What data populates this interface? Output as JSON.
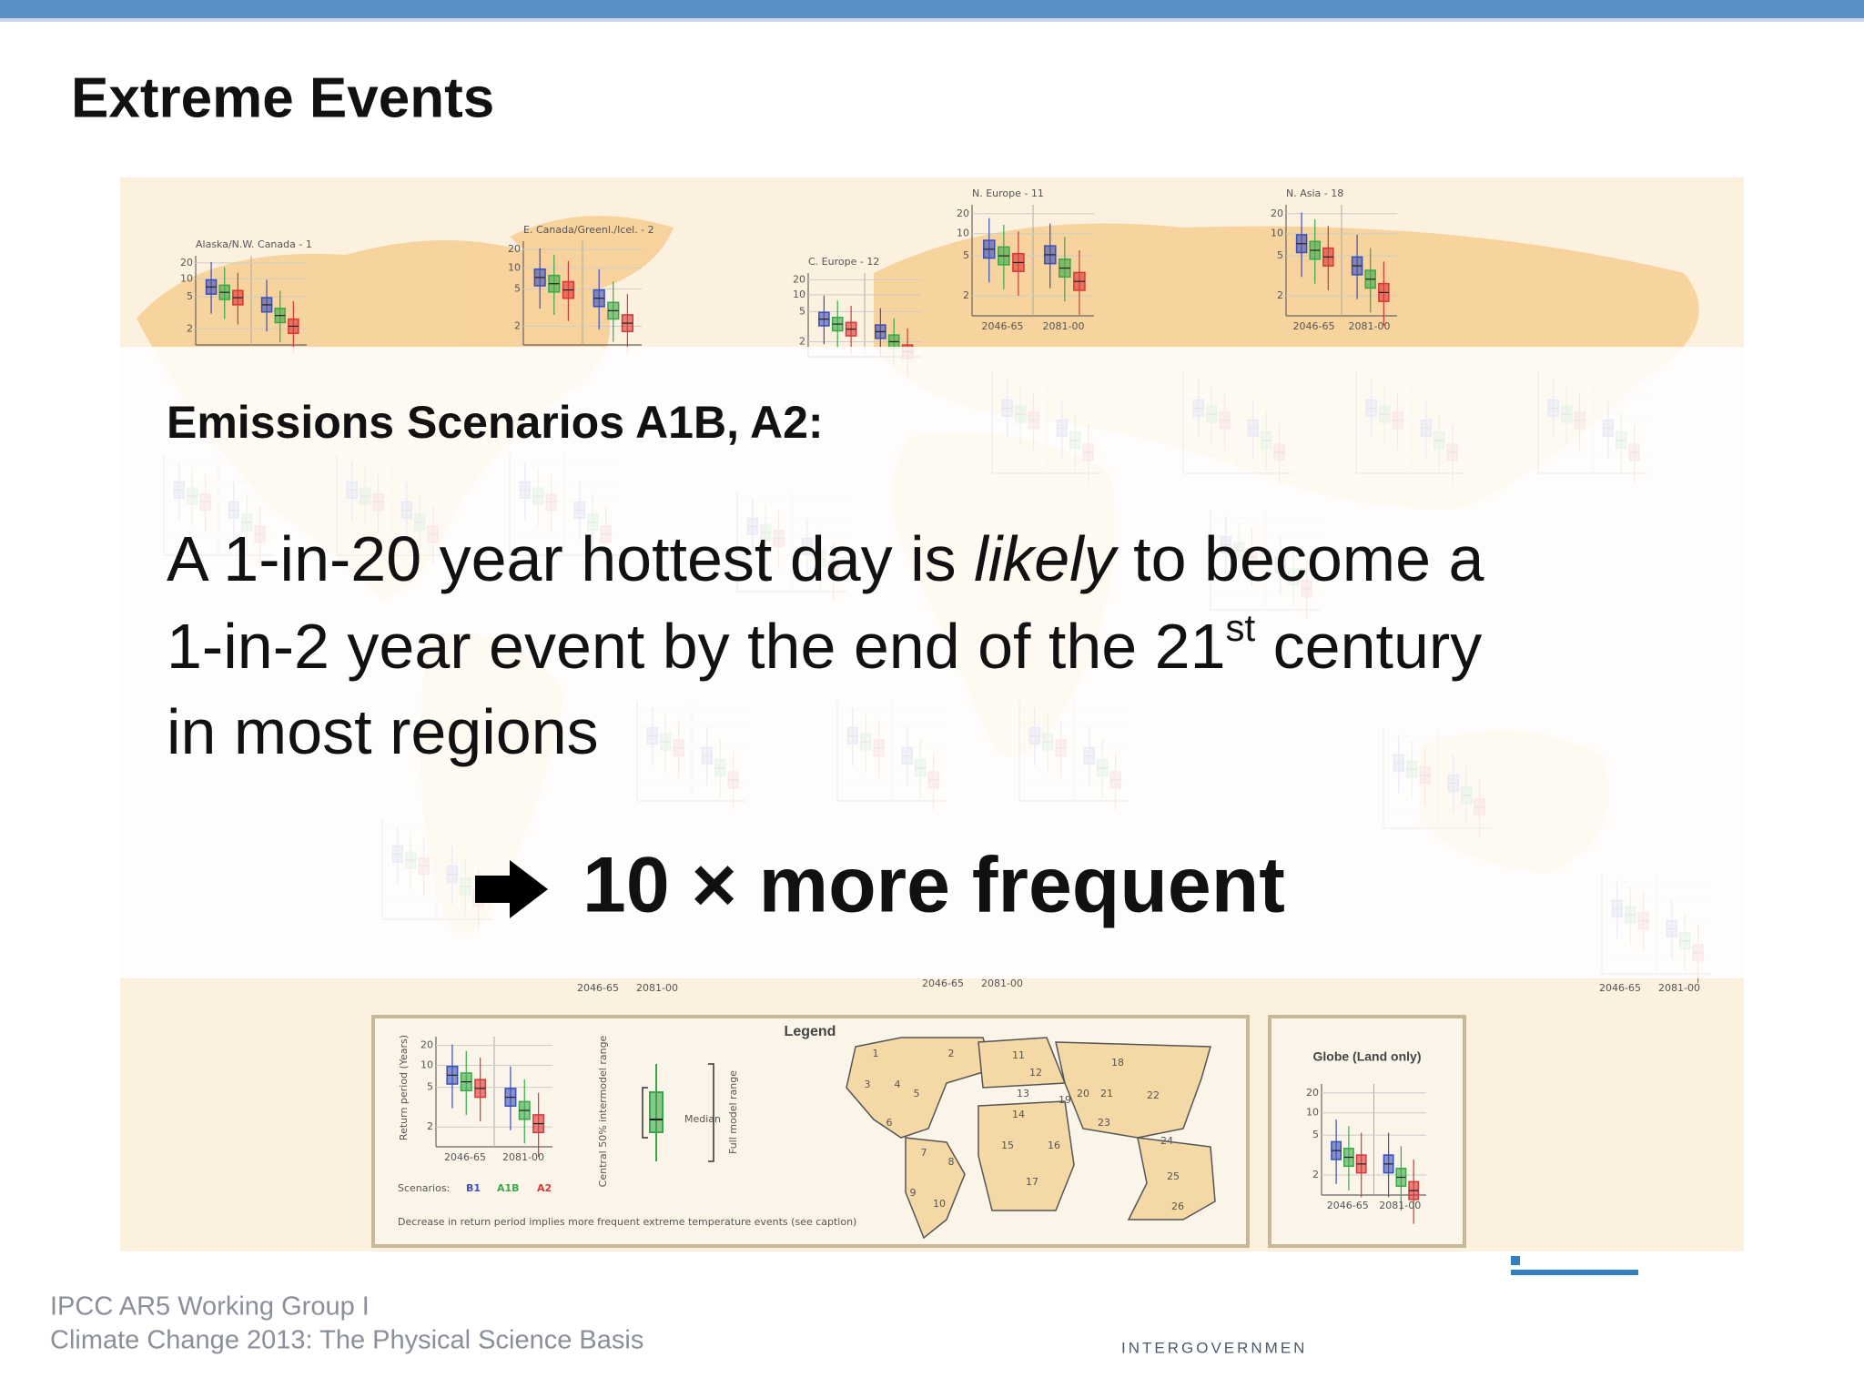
{
  "header": {
    "title": "Extreme Events"
  },
  "figure": {
    "region_titles": [
      "Alaska/N.W. Canada - 1",
      "E. Canada/Greenl./Icel. - 2",
      "C. Europe - 12",
      "N. Europe - 11",
      "N. Asia - 18"
    ],
    "ticks": [
      "20",
      "10",
      "5",
      "2"
    ],
    "periods": [
      "2046-65",
      "2081-00"
    ],
    "legend": {
      "title": "Legend",
      "y_axis_label": "Return period (Years)",
      "scenarios_label": "Scenarios:",
      "scenarios": [
        {
          "name": "B1",
          "color": "#3b4fb8"
        },
        {
          "name": "A1B",
          "color": "#3aa84a"
        },
        {
          "name": "A2",
          "color": "#d93636"
        }
      ],
      "central_range": "Central 50% intermodel range",
      "median": "Median",
      "full_range": "Full model range",
      "caption": "Decrease in return period implies more frequent extreme temperature events (see caption)",
      "map_regions": [
        "1",
        "2",
        "3",
        "4",
        "5",
        "6",
        "7",
        "8",
        "9",
        "10",
        "11",
        "12",
        "13",
        "14",
        "15",
        "16",
        "17",
        "18",
        "19",
        "20",
        "21",
        "22",
        "23",
        "24",
        "25",
        "26"
      ]
    },
    "globe": {
      "title": "Globe (Land only)"
    }
  },
  "overlay": {
    "subtitle": "Emissions Scenarios A1B, A2:",
    "statement": [
      [
        "A 1-in-20 year hottest day is ",
        "likely",
        " to become a"
      ],
      [
        "1-in-2 year event by the end of the 21",
        "st",
        " century"
      ],
      [
        "in most regions"
      ]
    ],
    "conclusion": "10 × more frequent"
  },
  "footer": {
    "lines": [
      "IPCC AR5 Working Group I",
      "Climate Change 2013: The Physical Science Basis"
    ],
    "organization": "INTERGOVERNMEN"
  }
}
